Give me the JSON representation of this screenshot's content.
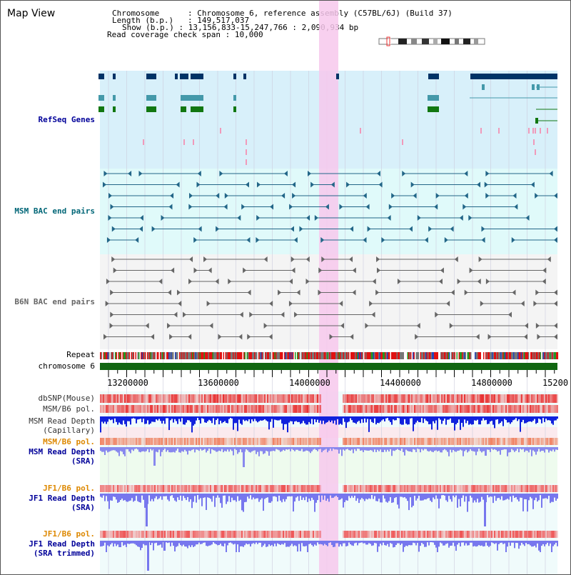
{
  "app": {
    "title": "Map View"
  },
  "info": {
    "chromosome_label": "Chromosome",
    "chromosome_value": "Chromosome 6, reference assembly (C57BL/6J) (Build 37)",
    "length_label": "Length (b.p.)",
    "length_value": "149,517,037",
    "show_label": "Show (b.p.)",
    "show_value": "13,156,833-15,247,766 : 2,090,934 bp",
    "coverage_label": "Read coverage check span",
    "coverage_value": "10,000"
  },
  "tracks": {
    "refseq": "RefSeq Genes",
    "msm_bac": "MSM BAC end pairs",
    "b6n_bac": "B6N BAC end pairs",
    "repeat": "Repeat",
    "chromosome": "chromosome 6",
    "dbsnp": "dbSNP(Mouse)",
    "msm_b6_pol_1": "MSM/B6 pol.",
    "msm_read_depth_cap_1": "MSM Read Depth",
    "msm_read_depth_cap_2": "(Capillary)",
    "msm_b6_pol_2": "MSM/B6 pol.",
    "msm_read_depth_sra_1": "MSM Read Depth",
    "msm_read_depth_sra_2": "(SRA)",
    "jf1_b6_pol_1": "JF1/B6 pol.",
    "jf1_read_depth_sra_1": "JF1 Read Depth",
    "jf1_read_depth_sra_2": "(SRA)",
    "jf1_b6_pol_2": "JF1/B6 pol.",
    "jf1_read_depth_trim_1": "JF1 Read Depth",
    "jf1_read_depth_trim_2": "(SRA trimmed)"
  },
  "axis": {
    "ticks": [
      "13200000",
      "13600000",
      "14000000",
      "14400000",
      "14800000",
      "15200"
    ]
  },
  "colors": {
    "highlight": "#f7c8ec",
    "refseq_bg": "#d8f0fa",
    "msm_bg": "#e0fafa",
    "b6n_bg": "#f4f4f4",
    "navy": "#003366",
    "teal": "#4499aa",
    "green": "#117711",
    "bac_teal": "#226688",
    "bac_gray": "#666666",
    "label_navy": "#000099",
    "label_orange": "#dd8800",
    "label_teal": "#006677"
  }
}
